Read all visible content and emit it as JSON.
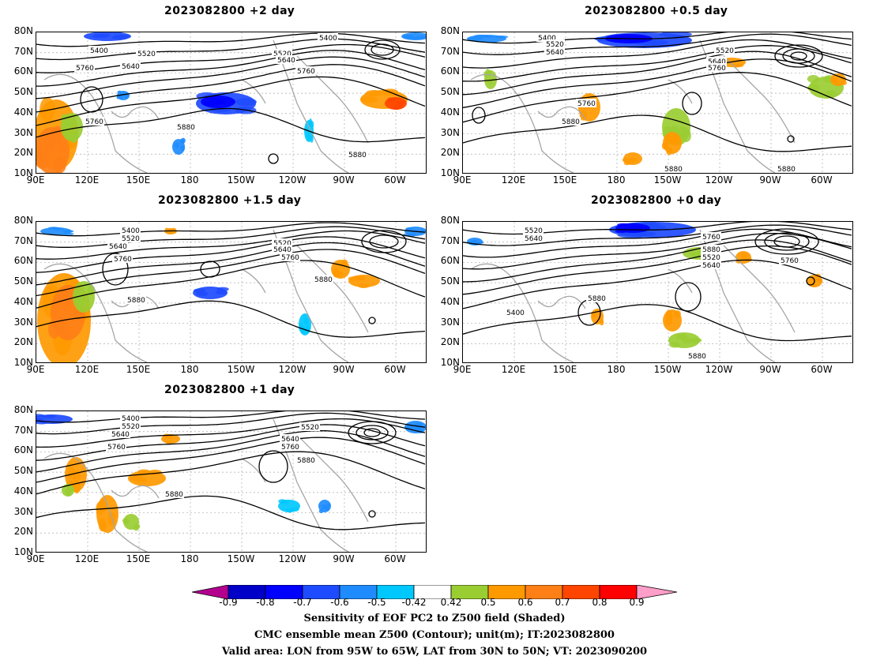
{
  "panels": [
    {
      "id": "p1",
      "title": "2023082800 +2 day",
      "contour_labels": [
        "5400",
        "5520",
        "5640",
        "5760",
        "5880",
        "5760",
        "5520",
        "5640",
        "5760",
        "5880",
        "5400"
      ]
    },
    {
      "id": "p2",
      "title": "2023082800 +0.5 day",
      "contour_labels": [
        "5400",
        "5520",
        "5640",
        "5520",
        "5640",
        "5760",
        "5760",
        "5880",
        "5880",
        "5880"
      ]
    },
    {
      "id": "p3",
      "title": "2023082800 +1.5 day",
      "contour_labels": [
        "5400",
        "5520",
        "5640",
        "5760",
        "5880",
        "5520",
        "5640",
        "5760",
        "5880"
      ]
    },
    {
      "id": "p4",
      "title": "2023082800 +0 day",
      "contour_labels": [
        "5520",
        "5640",
        "5760",
        "5880",
        "5520",
        "5640",
        "5760",
        "5400",
        "5880",
        "5880"
      ]
    },
    {
      "id": "p5",
      "title": "2023082800 +1 day",
      "contour_labels": [
        "5400",
        "5520",
        "5640",
        "5760",
        "5880",
        "5640",
        "5760",
        "5520",
        "5880"
      ]
    }
  ],
  "axes": {
    "lat_labels": [
      "80N",
      "70N",
      "60N",
      "50N",
      "40N",
      "30N",
      "20N",
      "10N"
    ],
    "lon_labels": [
      "90E",
      "120E",
      "150E",
      "180",
      "150W",
      "120W",
      "90W",
      "60W"
    ]
  },
  "colorbar": {
    "labels": [
      "-0.9",
      "-0.8",
      "-0.7",
      "-0.6",
      "-0.5",
      "-0.42",
      "0.42",
      "0.5",
      "0.6",
      "0.7",
      "0.8",
      "0.9"
    ],
    "colors": [
      "#b3008f",
      "#0000c8",
      "#0000ff",
      "#1e4bff",
      "#1e8cff",
      "#00c8ff",
      "#ffffff",
      "#9acd32",
      "#ff9900",
      "#ff7f17",
      "#ff4500",
      "#ff0000",
      "#ff9ec8"
    ]
  },
  "caption": {
    "line1": "Sensitivity of EOF PC2 to Z500 field (Shaded)",
    "line2": "CMC ensemble mean Z500 (Contour); unit(m); IT:2023082800",
    "line3": "Valid area: LON from 95W to 65W, LAT from 30N to 50N; VT: 2023090200"
  }
}
